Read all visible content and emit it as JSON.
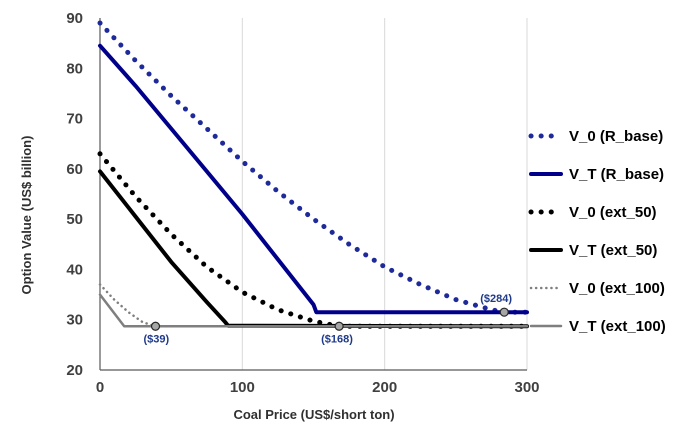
{
  "chart_data": {
    "type": "line",
    "title": "",
    "xlabel": "Coal Price (US$/short ton)",
    "ylabel": "Option Value (US$ billion)",
    "xlim": [
      0,
      300
    ],
    "ylim": [
      20,
      90
    ],
    "xticks": [
      "0",
      "100",
      "200",
      "300"
    ],
    "yticks": [
      "20",
      "30",
      "40",
      "50",
      "60",
      "70",
      "80",
      "90"
    ],
    "grid": "vertical",
    "legend_position": "right",
    "series": [
      {
        "name": "V_0 (R_base)",
        "color": "#1f2a9a",
        "style": "dotted",
        "x": [
          0,
          25,
          50,
          75,
          100,
          125,
          150,
          175,
          200,
          225,
          250,
          275,
          284,
          300
        ],
        "y": [
          89,
          81.5,
          74.5,
          68,
          61.5,
          55.5,
          50,
          45,
          40.5,
          37,
          34,
          32,
          31.5,
          31.5
        ]
      },
      {
        "name": "V_T (R_base)",
        "color": "#00008b",
        "style": "solid",
        "x": [
          0,
          25,
          50,
          75,
          100,
          125,
          150,
          152,
          300
        ],
        "y": [
          84.5,
          76.5,
          68,
          59.5,
          51,
          42,
          33,
          31.5,
          31.5
        ]
      },
      {
        "name": "V_0 (ext_50)",
        "color": "#000000",
        "style": "dotted",
        "x": [
          0,
          25,
          50,
          75,
          100,
          125,
          150,
          168,
          300
        ],
        "y": [
          63,
          54.5,
          47,
          40.5,
          35.5,
          32,
          29.7,
          28.7,
          28.7
        ]
      },
      {
        "name": "V_T (ext_50)",
        "color": "#000000",
        "style": "solid",
        "x": [
          0,
          25,
          50,
          75,
          88,
          90,
          300
        ],
        "y": [
          59.5,
          50.5,
          41.5,
          33.5,
          29.5,
          28.8,
          28.7
        ]
      },
      {
        "name": "V_0 (ext_100)",
        "color": "#7f7f7f",
        "style": "dotted",
        "x": [
          0,
          10,
          20,
          30,
          39,
          300
        ],
        "y": [
          37,
          34,
          31.5,
          29.5,
          28.7,
          28.7
        ]
      },
      {
        "name": "V_T (ext_100)",
        "color": "#7f7f7f",
        "style": "solid",
        "x": [
          0,
          17,
          300
        ],
        "y": [
          35,
          28.7,
          28.7
        ]
      }
    ],
    "annotations": [
      {
        "text": "($39)",
        "x": 39,
        "y": 28.7
      },
      {
        "text": "($168)",
        "x": 168,
        "y": 28.7
      },
      {
        "text": "($284)",
        "x": 284,
        "y": 31.5
      }
    ]
  }
}
